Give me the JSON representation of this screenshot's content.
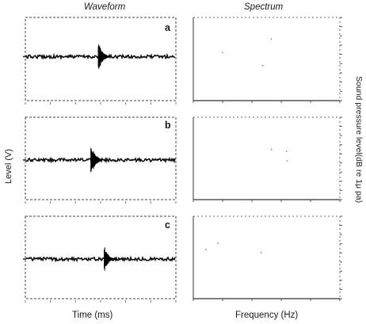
{
  "figure": {
    "column_titles": {
      "waveform": "Waveform",
      "spectrum": "Spectrum"
    },
    "y_label_left": "Level (V)",
    "y_label_right": "Sound pressure level(dB re 1μ pa)",
    "x_label_left": "Time (ms)",
    "x_label_right": "Frequency (Hz)",
    "panels": [
      {
        "letter": "a",
        "burst_position": 0.49,
        "burst_amplitude": 0.9
      },
      {
        "letter": "b",
        "burst_position": 0.44,
        "burst_amplitude": 1.0
      },
      {
        "letter": "c",
        "burst_position": 0.53,
        "burst_amplitude": 0.75
      }
    ]
  }
}
